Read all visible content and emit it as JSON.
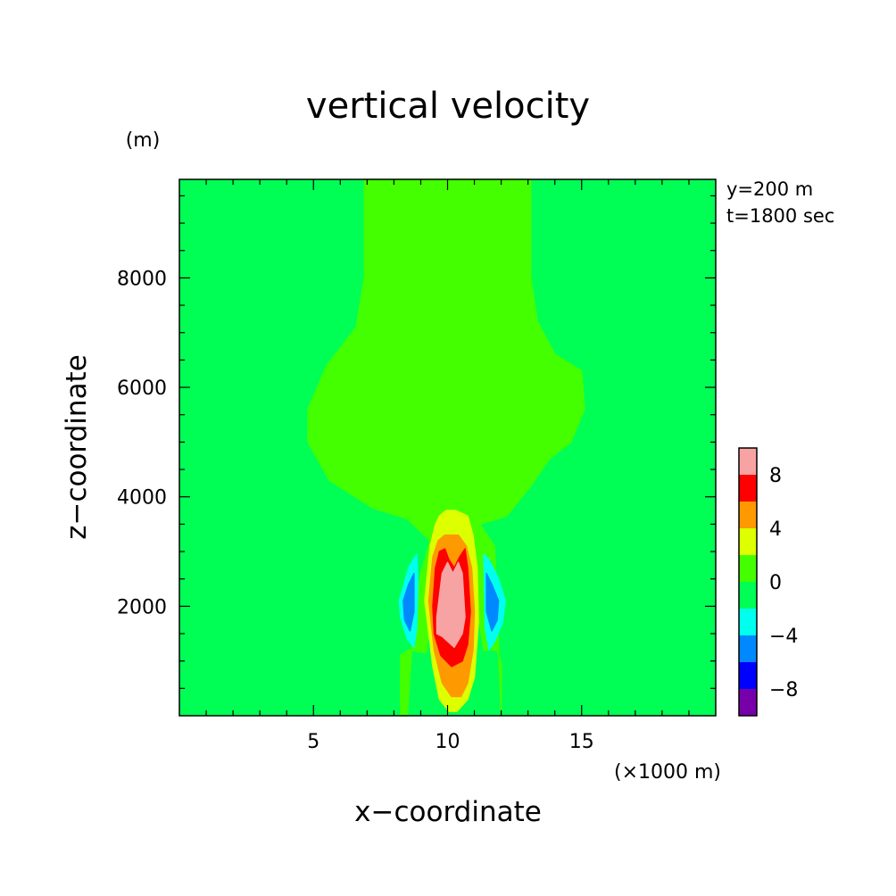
{
  "chart_data": {
    "type": "heatmap",
    "title": "vertical velocity",
    "xlabel": "x−coordinate",
    "ylabel": "z−coordinate",
    "x_unit": "(×1000 m)",
    "y_unit": "(m)",
    "annotations": [
      "y=200 m",
      "t=1800 sec"
    ],
    "xlim": [
      0,
      20
    ],
    "ylim": [
      0,
      9800
    ],
    "x_ticks": [
      5,
      10,
      15
    ],
    "x_tick_labels": [
      "5",
      "10",
      "15"
    ],
    "y_ticks": [
      2000,
      4000,
      6000,
      8000
    ],
    "y_tick_labels": [
      "2000",
      "4000",
      "6000",
      "8000"
    ],
    "background_level": "-2 to 0",
    "contour_regions": [
      {
        "level": "0 to 2",
        "color": "#44ff00",
        "x": [
          8.25,
          8.25,
          8.55,
          9.2,
          9.75,
          10.7,
          11.35,
          11.85,
          12.0,
          12.0,
          11.75,
          11.2,
          12.2,
          13.1,
          13.8,
          14.6,
          15.1,
          15.0,
          14.0,
          13.35,
          13.1,
          13.1,
          6.9,
          6.9,
          6.6,
          5.5,
          4.8,
          4.8,
          5.6,
          7.2,
          8.5,
          9.35,
          9.0,
          8.7,
          8.5
        ],
        "y": [
          0,
          1100,
          1200,
          1150,
          3400,
          3400,
          1200,
          1200,
          950,
          0,
          3100,
          3500,
          3650,
          4200,
          4700,
          5000,
          5600,
          6300,
          6600,
          7200,
          8000,
          9800,
          9800,
          8000,
          7100,
          6400,
          5600,
          5000,
          4300,
          3800,
          3600,
          3200,
          2600,
          1500,
          0
        ]
      },
      {
        "level": "2 to 4",
        "color": "#ddff00",
        "x": [
          9.15,
          9.35,
          9.55,
          9.7,
          9.95,
          10.3,
          10.75,
          10.95,
          11.1,
          11.15,
          11.0,
          10.75,
          10.35,
          10.05,
          9.7,
          9.45
        ],
        "y": [
          2100,
          3100,
          3500,
          3650,
          3750,
          3750,
          3650,
          3300,
          2700,
          1700,
          700,
          300,
          80,
          80,
          300,
          900
        ]
      },
      {
        "level": "4 to 6",
        "color": "#ff9900",
        "x": [
          9.3,
          9.45,
          9.65,
          9.9,
          10.4,
          10.7,
          10.9,
          11.0,
          10.95,
          10.75,
          10.5,
          10.15,
          9.8,
          9.5
        ],
        "y": [
          2100,
          2900,
          3200,
          3300,
          3300,
          3100,
          2700,
          1900,
          1200,
          600,
          350,
          350,
          600,
          1200
        ]
      },
      {
        "level": "6 to 8",
        "color": "#ff0000",
        "x": [
          9.45,
          9.55,
          9.7,
          9.9,
          10.05,
          10.25,
          10.45,
          10.65,
          10.75,
          10.85,
          10.75,
          10.55,
          10.15,
          9.75,
          9.5
        ],
        "y": [
          2000,
          2700,
          3000,
          3050,
          2850,
          2700,
          2900,
          3050,
          2700,
          1900,
          1300,
          1000,
          900,
          1100,
          1500
        ]
      },
      {
        "level": "8 to 10",
        "color": "#f8a3a3",
        "x": [
          9.6,
          9.8,
          10.0,
          10.2,
          10.4,
          10.55,
          10.65,
          10.55,
          10.25,
          9.8,
          9.6
        ],
        "y": [
          1800,
          2600,
          2800,
          2600,
          2800,
          2600,
          1800,
          1500,
          1250,
          1450,
          1500
        ]
      },
      {
        "level": "-4 to -2",
        "color": "#00ffee",
        "x": [
          8.2,
          8.55,
          8.85,
          8.9,
          8.85,
          8.75,
          8.5,
          8.25
        ],
        "y": [
          2100,
          2700,
          2950,
          2400,
          1600,
          1250,
          1400,
          1800
        ]
      },
      {
        "level": "-6 to -4",
        "color": "#0088ff",
        "x": [
          8.35,
          8.55,
          8.75,
          8.75,
          8.6,
          8.4
        ],
        "y": [
          2100,
          2400,
          2600,
          1900,
          1550,
          1750
        ]
      },
      {
        "level": "-4 to -2",
        "color": "#00ffee",
        "x": [
          11.35,
          11.55,
          11.9,
          12.15,
          12.05,
          11.75,
          11.55,
          11.4
        ],
        "y": [
          2950,
          2850,
          2500,
          2100,
          1700,
          1350,
          1200,
          1600
        ]
      },
      {
        "level": "-6 to -4",
        "color": "#0088ff",
        "x": [
          11.45,
          11.65,
          11.9,
          11.85,
          11.65,
          11.45
        ],
        "y": [
          2600,
          2400,
          2100,
          1750,
          1550,
          1900
        ]
      }
    ],
    "colorbar": {
      "tick_labels": [
        "8",
        "4",
        "0",
        "−4",
        "−8"
      ],
      "levels": [
        {
          "range": "8 to 10",
          "color": "#f8a3a3"
        },
        {
          "range": "6 to 8",
          "color": "#ff0000"
        },
        {
          "range": "4 to 6",
          "color": "#ff9900"
        },
        {
          "range": "2 to 4",
          "color": "#ddff00"
        },
        {
          "range": "0 to 2",
          "color": "#44ff00"
        },
        {
          "range": "-2 to 0",
          "color": "#00ff55"
        },
        {
          "range": "-4 to -2",
          "color": "#00ffee"
        },
        {
          "range": "-6 to -4",
          "color": "#0088ff"
        },
        {
          "range": "-8 to -6",
          "color": "#0000ff"
        },
        {
          "range": "-10 to -8",
          "color": "#7700aa"
        }
      ]
    }
  }
}
